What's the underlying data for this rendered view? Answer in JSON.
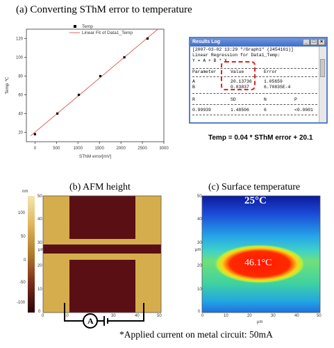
{
  "panel_a": {
    "title": "(a) Converting SThM error to temperature",
    "legend": {
      "points": "Temp",
      "fit": "Linear Fit of Data1_Temp"
    },
    "results_log": {
      "window_title": "Results Log",
      "header": "[2007-03-02 13:29 \"/Graph1\" (2454161)]",
      "subtitle": "Linear Regression for Data1_Temp:",
      "equation": "Y = A + B * X",
      "cols1": [
        "Parameter",
        "Value",
        "Error"
      ],
      "rows1": [
        [
          "A",
          "20.13736",
          "1.05659"
        ],
        [
          "B",
          "0.03837",
          "6.70835E-4"
        ]
      ],
      "cols2": [
        "R",
        "SD",
        "N",
        "P"
      ],
      "row2": [
        "0.99939",
        "1.48506",
        "6",
        "<0.0001"
      ]
    },
    "formula": "Temp = 0.04 * SThM error + 20.1"
  },
  "chart_data": [
    {
      "type": "scatter",
      "title": "",
      "xlabel": "SThM error[mV]",
      "ylabel": "Temp ℃",
      "xlim": [
        -200,
        3000
      ],
      "ylim": [
        10,
        130
      ],
      "xticks": [
        0,
        500,
        1000,
        1500,
        2000,
        2500,
        3000
      ],
      "yticks": [
        20,
        40,
        60,
        80,
        100,
        120
      ],
      "series": [
        {
          "name": "Temp",
          "x": [
            0,
            520,
            1020,
            1520,
            2080,
            2620
          ],
          "y": [
            18,
            40,
            60,
            80,
            100,
            120
          ]
        },
        {
          "name": "Linear Fit of Data1_Temp",
          "x": [
            -100,
            2860
          ],
          "y": [
            16.3,
            130
          ]
        }
      ],
      "legend": "top-center",
      "grid": false
    }
  ],
  "panel_b": {
    "title": "(b) AFM height",
    "colorbar_unit": "nm",
    "colorbar_ticks": [
      "100",
      "50",
      "0",
      "-50",
      "-100"
    ],
    "x_ticks": [
      "0",
      "10",
      "20",
      "30",
      "40",
      "50"
    ],
    "y_ticks": [
      "50",
      "40",
      "30",
      "20",
      "10",
      "0"
    ],
    "axis_unit": "μm",
    "circuit_label": "A",
    "colors": {
      "pad": "#5a0f14",
      "background": "#d9b04e",
      "dark": "#5b1218"
    }
  },
  "panel_c": {
    "title": "(c) Surface temperature",
    "label_top": "25°C",
    "label_hot": "46.1°C",
    "x_ticks": [
      "0",
      "10",
      "20",
      "30",
      "40",
      "50"
    ],
    "y_ticks": [
      "50",
      "40",
      "30",
      "20",
      "10",
      "0"
    ],
    "axis_unit": "μm"
  },
  "caption": "*Applied current on metal circuit: 50mA"
}
